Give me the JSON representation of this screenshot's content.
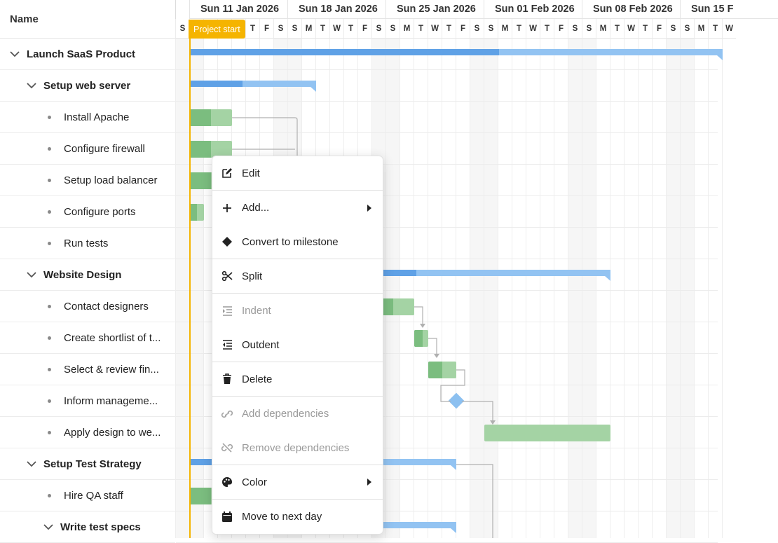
{
  "tree": {
    "header": "Name",
    "rows": [
      {
        "label": "Launch SaaS Product",
        "level": 0,
        "parent": true
      },
      {
        "label": "Setup web server",
        "level": 1,
        "parent": true
      },
      {
        "label": "Install Apache",
        "level": 2,
        "parent": false
      },
      {
        "label": "Configure firewall",
        "level": 2,
        "parent": false
      },
      {
        "label": "Setup load balancer",
        "level": 2,
        "parent": false
      },
      {
        "label": "Configure ports",
        "level": 2,
        "parent": false
      },
      {
        "label": "Run tests",
        "level": 2,
        "parent": false
      },
      {
        "label": "Website Design",
        "level": 1,
        "parent": true
      },
      {
        "label": "Contact designers",
        "level": 2,
        "parent": false
      },
      {
        "label": "Create shortlist of t...",
        "level": 2,
        "parent": false
      },
      {
        "label": "Select & review fin...",
        "level": 2,
        "parent": false
      },
      {
        "label": "Inform manageme...",
        "level": 2,
        "parent": false
      },
      {
        "label": "Apply design to we...",
        "level": 2,
        "parent": false
      },
      {
        "label": "Setup Test Strategy",
        "level": 1,
        "parent": true
      },
      {
        "label": "Hire QA staff",
        "level": 2,
        "parent": false
      },
      {
        "label": "Write test specs",
        "level": 2,
        "parent": true
      }
    ]
  },
  "timeline": {
    "weeks": [
      "Sun 11 Jan 2026",
      "Sun 18 Jan 2026",
      "Sun 25 Jan 2026",
      "Sun 01 Feb 2026",
      "Sun 08 Feb 2026",
      "Sun 15 F"
    ],
    "days_first": "S",
    "days_cycle": [
      "S",
      "M",
      "T",
      "W",
      "T",
      "F",
      "S"
    ],
    "project_start_label": "Project start"
  },
  "context_menu": {
    "items": [
      {
        "label": "Edit",
        "icon": "edit-icon",
        "disabled": false,
        "submenu": false,
        "sep": true
      },
      {
        "label": "Add...",
        "icon": "plus-icon",
        "disabled": false,
        "submenu": true,
        "sep": false
      },
      {
        "label": "Convert to milestone",
        "icon": "diamond-icon",
        "disabled": false,
        "submenu": false,
        "sep": true
      },
      {
        "label": "Split",
        "icon": "scissors-icon",
        "disabled": false,
        "submenu": false,
        "sep": true
      },
      {
        "label": "Indent",
        "icon": "indent-icon",
        "disabled": true,
        "submenu": false,
        "sep": false
      },
      {
        "label": "Outdent",
        "icon": "outdent-icon",
        "disabled": false,
        "submenu": false,
        "sep": true
      },
      {
        "label": "Delete",
        "icon": "trash-icon",
        "disabled": false,
        "submenu": false,
        "sep": true
      },
      {
        "label": "Add dependencies",
        "icon": "link-icon",
        "disabled": true,
        "submenu": false,
        "sep": false
      },
      {
        "label": "Remove dependencies",
        "icon": "unlink-icon",
        "disabled": true,
        "submenu": false,
        "sep": true
      },
      {
        "label": "Color",
        "icon": "palette-icon",
        "disabled": false,
        "submenu": true,
        "sep": true
      },
      {
        "label": "Move to next day",
        "icon": "calendar-icon",
        "disabled": false,
        "submenu": false,
        "sep": false
      }
    ]
  },
  "colors": {
    "summary_bar": "#92c3f2",
    "summary_progress": "#5fa1e6",
    "task_bar": "#a4d3a4",
    "task_progress": "#7bbd7f",
    "milestone": "#8cc0f0",
    "project_start": "#f5b400"
  }
}
